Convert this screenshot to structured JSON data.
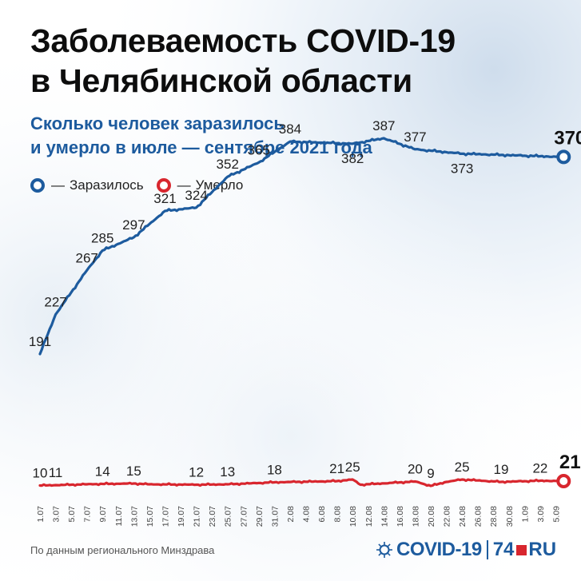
{
  "header": {
    "title_line1": "Заболеваемость COVID-19",
    "title_line2": "в Челябинской области",
    "subtitle_line1": "Сколько человек заразилось",
    "subtitle_line2": "и умерло в июле — сентябре 2021 года"
  },
  "legend": {
    "dash": "—",
    "infected_label": "Заразилось",
    "deaths_label": "Умерло"
  },
  "colors": {
    "infected": "#1d5b9e",
    "deaths": "#d8262e"
  },
  "footer": {
    "source": "По данным регионального Минздрава",
    "logo_covid": "COVID-19",
    "logo_74": "74",
    "logo_ru": "RU"
  },
  "chart_data": {
    "type": "line",
    "x_ticks": [
      "1.07",
      "3.07",
      "5.07",
      "7.07",
      "9.07",
      "11.07",
      "13.07",
      "15.07",
      "17.07",
      "19.07",
      "21.07",
      "23.07",
      "25.07",
      "27.07",
      "29.07",
      "31.07",
      "2.08",
      "4.08",
      "6.08",
      "8.08",
      "10.08",
      "12.08",
      "14.08",
      "16.08",
      "18.08",
      "20.08",
      "22.08",
      "24.08",
      "26.08",
      "28.08",
      "30.08",
      "1.09",
      "3.09",
      "5.09"
    ],
    "series": [
      {
        "name": "Заразилось",
        "points": [
          {
            "x": "1.07",
            "y": 191
          },
          {
            "x": "3.07",
            "y": 227
          },
          {
            "x": "7.07",
            "y": 267
          },
          {
            "x": "9.07",
            "y": 285
          },
          {
            "x": "13.07",
            "y": 297
          },
          {
            "x": "17.07",
            "y": 321
          },
          {
            "x": "21.07",
            "y": 324
          },
          {
            "x": "25.07",
            "y": 352
          },
          {
            "x": "29.07",
            "y": 365
          },
          {
            "x": "2.08",
            "y": 384
          },
          {
            "x": "10.08",
            "y": 382
          },
          {
            "x": "14.08",
            "y": 387
          },
          {
            "x": "18.08",
            "y": 377
          },
          {
            "x": "24.08",
            "y": 373
          },
          {
            "x": "6.09",
            "y": 370
          }
        ],
        "labels": [
          {
            "x": "1.07",
            "y": 191,
            "text": "191",
            "pos": "above"
          },
          {
            "x": "3.07",
            "y": 227,
            "text": "227",
            "pos": "above"
          },
          {
            "x": "7.07",
            "y": 267,
            "text": "267",
            "pos": "above"
          },
          {
            "x": "9.07",
            "y": 285,
            "text": "285",
            "pos": "above"
          },
          {
            "x": "13.07",
            "y": 297,
            "text": "297",
            "pos": "above"
          },
          {
            "x": "17.07",
            "y": 321,
            "text": "321",
            "pos": "above"
          },
          {
            "x": "21.07",
            "y": 324,
            "text": "324",
            "pos": "above"
          },
          {
            "x": "25.07",
            "y": 352,
            "text": "352",
            "pos": "above"
          },
          {
            "x": "29.07",
            "y": 365,
            "text": "365",
            "pos": "above"
          },
          {
            "x": "2.08",
            "y": 384,
            "text": "384",
            "pos": "above"
          },
          {
            "x": "10.08",
            "y": 382,
            "text": "382",
            "pos": "below"
          },
          {
            "x": "14.08",
            "y": 387,
            "text": "387",
            "pos": "above"
          },
          {
            "x": "18.08",
            "y": 377,
            "text": "377",
            "pos": "above"
          },
          {
            "x": "24.08",
            "y": 373,
            "text": "373",
            "pos": "below"
          },
          {
            "x": "6.09",
            "y": 370,
            "text": "370",
            "pos": "final"
          }
        ]
      },
      {
        "name": "Умерло",
        "points": [
          {
            "x": "1.07",
            "y": 10
          },
          {
            "x": "3.07",
            "y": 11
          },
          {
            "x": "9.07",
            "y": 14
          },
          {
            "x": "13.07",
            "y": 15
          },
          {
            "x": "15.07",
            "y": 13
          },
          {
            "x": "21.07",
            "y": 12
          },
          {
            "x": "25.07",
            "y": 13
          },
          {
            "x": "31.07",
            "y": 18
          },
          {
            "x": "8.08",
            "y": 21
          },
          {
            "x": "10.08",
            "y": 25
          },
          {
            "x": "11.08",
            "y": 12
          },
          {
            "x": "18.08",
            "y": 20
          },
          {
            "x": "20.08",
            "y": 9
          },
          {
            "x": "22.08",
            "y": 19
          },
          {
            "x": "24.08",
            "y": 25
          },
          {
            "x": "29.08",
            "y": 19
          },
          {
            "x": "3.09",
            "y": 22
          },
          {
            "x": "6.09",
            "y": 21
          }
        ],
        "labels": [
          {
            "x": "1.07",
            "y": 10,
            "text": "10",
            "pos": "above"
          },
          {
            "x": "3.07",
            "y": 11,
            "text": "11",
            "pos": "above"
          },
          {
            "x": "9.07",
            "y": 14,
            "text": "14",
            "pos": "above"
          },
          {
            "x": "13.07",
            "y": 15,
            "text": "15",
            "pos": "above"
          },
          {
            "x": "21.07",
            "y": 12,
            "text": "12",
            "pos": "above"
          },
          {
            "x": "25.07",
            "y": 13,
            "text": "13",
            "pos": "above"
          },
          {
            "x": "31.07",
            "y": 18,
            "text": "18",
            "pos": "above"
          },
          {
            "x": "8.08",
            "y": 21,
            "text": "21",
            "pos": "above"
          },
          {
            "x": "10.08",
            "y": 25,
            "text": "25",
            "pos": "above"
          },
          {
            "x": "18.08",
            "y": 20,
            "text": "20",
            "pos": "above"
          },
          {
            "x": "20.08",
            "y": 9,
            "text": "9",
            "pos": "above"
          },
          {
            "x": "24.08",
            "y": 25,
            "text": "25",
            "pos": "above"
          },
          {
            "x": "29.08",
            "y": 19,
            "text": "19",
            "pos": "above"
          },
          {
            "x": "3.09",
            "y": 22,
            "text": "22",
            "pos": "above"
          },
          {
            "x": "6.09",
            "y": 21,
            "text": "21",
            "pos": "final"
          }
        ]
      }
    ],
    "grid": false,
    "legend_position": "top-left"
  }
}
